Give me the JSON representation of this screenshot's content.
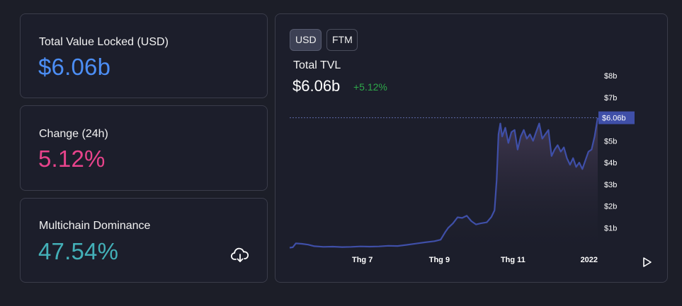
{
  "stats": {
    "tvl": {
      "label": "Total Value Locked (USD)",
      "value": "$6.06b",
      "color": "#4c8ef5"
    },
    "change": {
      "label": "Change (24h)",
      "value": "5.12%",
      "color": "#e8438b"
    },
    "dominance": {
      "label": "Multichain Dominance",
      "value": "47.54%",
      "color": "#43b0b8",
      "download_icon": "cloud-download-icon"
    }
  },
  "chart": {
    "toggles": [
      {
        "label": "USD",
        "active": true
      },
      {
        "label": "FTM",
        "active": false
      }
    ],
    "title": "Total TVL",
    "value": "$6.06b",
    "change": "+5.12%",
    "change_color": "#2ea84a",
    "current_label": "$6.06b",
    "accent_color": "#3f4fa8",
    "play_icon": "play-icon"
  },
  "chart_data": {
    "type": "area",
    "ylabel": "",
    "xlabel": "",
    "ylim": [
      0,
      8
    ],
    "y_ticks": [
      "$1b",
      "$2b",
      "$3b",
      "$4b",
      "$5b",
      "$6b",
      "$7b",
      "$8b"
    ],
    "y_tick_values": [
      1,
      2,
      3,
      4,
      5,
      6,
      7,
      8
    ],
    "x_ticks": [
      "Thg 7",
      "Thg 9",
      "Thg 11",
      "2022"
    ],
    "x_tick_positions": [
      0.236,
      0.486,
      0.725,
      0.972
    ],
    "series": [
      {
        "values": [
          [
            0.0,
            0.08
          ],
          [
            0.01,
            0.1
          ],
          [
            0.02,
            0.28
          ],
          [
            0.04,
            0.26
          ],
          [
            0.06,
            0.22
          ],
          [
            0.08,
            0.15
          ],
          [
            0.11,
            0.12
          ],
          [
            0.14,
            0.13
          ],
          [
            0.17,
            0.11
          ],
          [
            0.2,
            0.12
          ],
          [
            0.23,
            0.14
          ],
          [
            0.26,
            0.13
          ],
          [
            0.29,
            0.14
          ],
          [
            0.32,
            0.17
          ],
          [
            0.35,
            0.16
          ],
          [
            0.38,
            0.21
          ],
          [
            0.41,
            0.27
          ],
          [
            0.44,
            0.33
          ],
          [
            0.47,
            0.38
          ],
          [
            0.49,
            0.45
          ],
          [
            0.505,
            0.8
          ],
          [
            0.515,
            1.0
          ],
          [
            0.53,
            1.2
          ],
          [
            0.545,
            1.48
          ],
          [
            0.56,
            1.45
          ],
          [
            0.575,
            1.55
          ],
          [
            0.59,
            1.3
          ],
          [
            0.605,
            1.15
          ],
          [
            0.62,
            1.2
          ],
          [
            0.64,
            1.25
          ],
          [
            0.655,
            1.5
          ],
          [
            0.665,
            1.8
          ],
          [
            0.672,
            3.2
          ],
          [
            0.678,
            5.3
          ],
          [
            0.684,
            5.8
          ],
          [
            0.69,
            5.2
          ],
          [
            0.7,
            5.6
          ],
          [
            0.71,
            4.9
          ],
          [
            0.72,
            5.4
          ],
          [
            0.73,
            5.5
          ],
          [
            0.74,
            4.6
          ],
          [
            0.75,
            5.2
          ],
          [
            0.76,
            5.5
          ],
          [
            0.77,
            5.1
          ],
          [
            0.78,
            5.3
          ],
          [
            0.79,
            5.0
          ],
          [
            0.8,
            5.4
          ],
          [
            0.81,
            5.8
          ],
          [
            0.82,
            5.1
          ],
          [
            0.83,
            5.3
          ],
          [
            0.84,
            5.5
          ],
          [
            0.85,
            4.3
          ],
          [
            0.86,
            4.6
          ],
          [
            0.87,
            4.8
          ],
          [
            0.88,
            4.5
          ],
          [
            0.89,
            4.7
          ],
          [
            0.9,
            4.2
          ],
          [
            0.91,
            3.9
          ],
          [
            0.92,
            4.2
          ],
          [
            0.93,
            3.8
          ],
          [
            0.94,
            4.0
          ],
          [
            0.95,
            3.7
          ],
          [
            0.96,
            4.1
          ],
          [
            0.97,
            4.5
          ],
          [
            0.98,
            4.6
          ],
          [
            0.99,
            5.2
          ],
          [
            1.0,
            6.06
          ]
        ]
      }
    ]
  }
}
